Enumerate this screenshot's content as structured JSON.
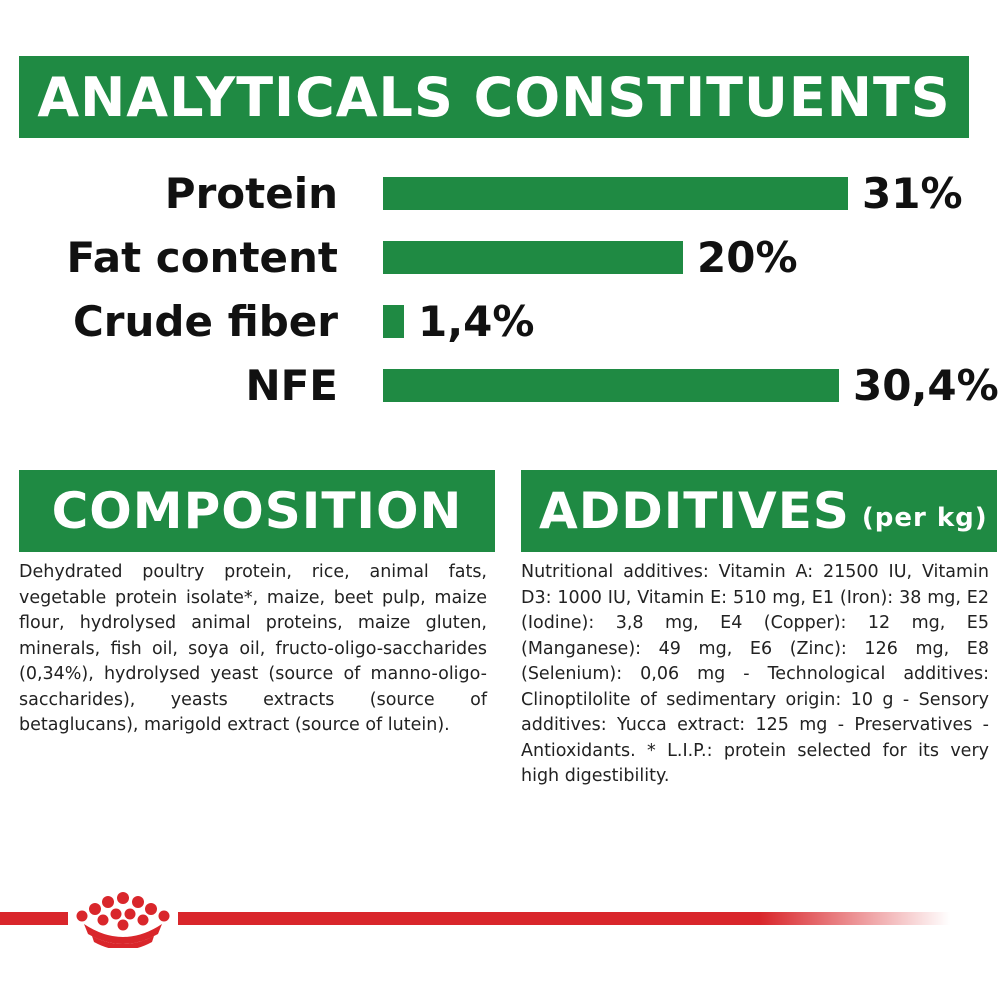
{
  "analytical": {
    "title": "ANALYTICALS CONSTITUENTS",
    "items": [
      {
        "label": "Protein",
        "value": "31%",
        "amount": 31
      },
      {
        "label": "Fat content",
        "value": "20%",
        "amount": 20
      },
      {
        "label": "Crude fiber",
        "value": "1,4%",
        "amount": 1.4
      },
      {
        "label": "NFE",
        "value": "30,4%",
        "amount": 30.4
      }
    ]
  },
  "composition": {
    "title": "COMPOSITION",
    "text": "Dehydrated poultry protein, rice, animal fats, vegetable protein isolate*, maize, beet pulp, maize flour, hydrolysed animal proteins, maize gluten, minerals, fish oil, soya oil, fructo-oligo-saccharides (0,34%), hydrolysed yeast (source of manno-oligo-saccharides), yeasts extracts (source of betaglucans), marigold extract (source of lutein)."
  },
  "additives": {
    "title": "ADDITIVES",
    "subtitle": "(per kg)",
    "text": "Nutritional additives: Vitamin A: 21500 IU, Vitamin D3: 1000 IU, Vitamin E: 510 mg, E1 (Iron): 38 mg, E2 (Iodine): 3,8 mg, E4 (Copper): 12 mg, E5 (Manganese): 49 mg, E6 (Zinc): 126 mg, E8 (Selenium): 0,06 mg - Technological additives: Clinoptilolite of sedimentary origin: 10 g - Sensory additives: Yucca extract: 125 mg - Preservatives - Antioxidants. * L.I.P.: protein selected for its very high digestibility."
  },
  "colors": {
    "brand_green": "#1f8a43",
    "brand_red": "#d9262b"
  },
  "footer": {
    "logo_icon": "crown-icon"
  }
}
